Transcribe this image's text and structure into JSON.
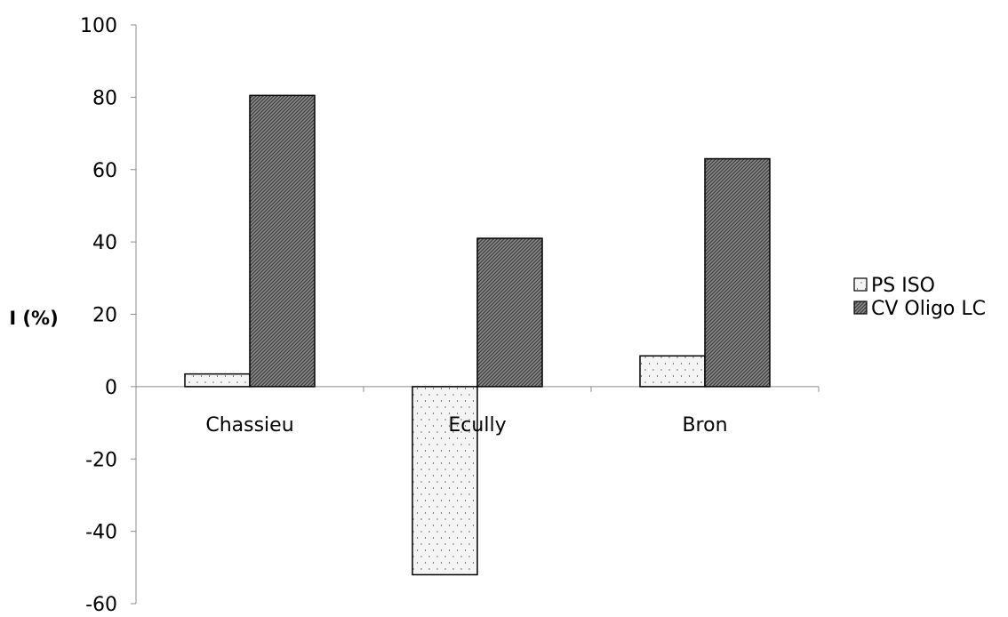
{
  "chart_data": {
    "type": "bar",
    "title": "",
    "xlabel": "",
    "ylabel": "I (%)",
    "ylim": [
      -60,
      100
    ],
    "yticks": [
      100,
      80,
      60,
      40,
      20,
      0,
      -20,
      -40,
      -60
    ],
    "grid": false,
    "legend_position": "right",
    "categories": [
      "Chassieu",
      "Ecully",
      "Bron"
    ],
    "series": [
      {
        "name": "PS ISO",
        "values": [
          3.5,
          -52,
          8.5
        ],
        "pattern": "light-dotted",
        "fill": "#f2f2f2"
      },
      {
        "name": "CV Oligo LC",
        "values": [
          80.5,
          41,
          63
        ],
        "pattern": "dark-hatched",
        "fill": "#6e6e6e"
      }
    ]
  }
}
